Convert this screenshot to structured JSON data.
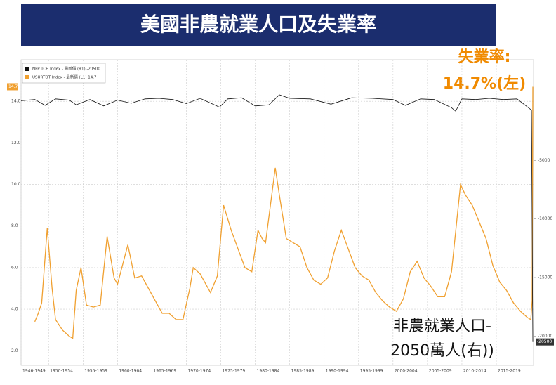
{
  "chart_data": {
    "type": "line",
    "title": "美國非農就業人口及失業率",
    "annotations": [
      "失業率:",
      "14.7%(左)",
      "非農就業人口-",
      "2050萬人(右))"
    ],
    "xlim": [
      1946,
      2020.4
    ],
    "xticks": [
      {
        "value": 1946,
        "label": "1946-1949"
      },
      {
        "value": 1950,
        "label": "1950-1954"
      },
      {
        "value": 1955,
        "label": "1955-1959"
      },
      {
        "value": 1960,
        "label": "1960-1964"
      },
      {
        "value": 1965,
        "label": "1965-1969"
      },
      {
        "value": 1970,
        "label": "1970-1974"
      },
      {
        "value": 1975,
        "label": "1975-1979"
      },
      {
        "value": 1980,
        "label": "1980-1984"
      },
      {
        "value": 1985,
        "label": "1985-1989"
      },
      {
        "value": 1990,
        "label": "1990-1994"
      },
      {
        "value": 1995,
        "label": "1995-1999"
      },
      {
        "value": 2000,
        "label": "2000-2004"
      },
      {
        "value": 2005,
        "label": "2005-2009"
      },
      {
        "value": 2010,
        "label": "2010-2014"
      },
      {
        "value": 2015,
        "label": "2015-2019"
      }
    ],
    "ylim": [
      1.3,
      16
    ],
    "yticks": [
      {
        "value": 2,
        "label": "2.0"
      },
      {
        "value": 4,
        "label": "4.0"
      },
      {
        "value": 6,
        "label": "6.0"
      },
      {
        "value": 8,
        "label": "8.0"
      },
      {
        "value": 10,
        "label": "10.0"
      },
      {
        "value": 12,
        "label": "12.0"
      },
      {
        "value": 14,
        "label": "14.0"
      }
    ],
    "y2lim": [
      -22500,
      3600
    ],
    "y2ticks": [
      -5000,
      -10000,
      -15000,
      -20000
    ],
    "grid": true,
    "series": [
      {
        "name": "USURTOT Index - 最新價 (L1) 14.7",
        "color": "#f0a030",
        "last_label": "14.7",
        "x": [
          1948.0,
          1948.5,
          1949.0,
          1949.8,
          1950.5,
          1951.0,
          1952.0,
          1953.0,
          1953.5,
          1954.0,
          1954.7,
          1955.5,
          1956.5,
          1957.5,
          1958.5,
          1959.5,
          1960.0,
          1961.5,
          1962.5,
          1963.5,
          1964.5,
          1965.5,
          1966.5,
          1967.5,
          1968.5,
          1969.5,
          1970.5,
          1971.0,
          1972.0,
          1973.5,
          1974.5,
          1975.4,
          1976.5,
          1977.5,
          1978.5,
          1979.5,
          1980.4,
          1981.0,
          1981.5,
          1982.9,
          1983.5,
          1984.5,
          1985.5,
          1986.5,
          1987.5,
          1988.5,
          1989.5,
          1990.5,
          1991.5,
          1992.5,
          1993.5,
          1994.5,
          1995.5,
          1996.5,
          1997.5,
          1998.5,
          1999.5,
          2000.5,
          2001.5,
          2002.5,
          2003.5,
          2004.5,
          2005.5,
          2006.5,
          2007.5,
          2008.5,
          2009.8,
          2010.5,
          2011.5,
          2012.5,
          2013.5,
          2014.5,
          2015.5,
          2016.5,
          2017.5,
          2018.5,
          2019.5,
          2020.0,
          2020.2,
          2020.3
        ],
        "values": [
          3.4,
          3.8,
          4.3,
          7.9,
          5.0,
          3.5,
          3.0,
          2.7,
          2.6,
          4.9,
          6.0,
          4.2,
          4.1,
          4.2,
          7.5,
          5.5,
          5.2,
          7.1,
          5.5,
          5.6,
          5.0,
          4.4,
          3.8,
          3.8,
          3.5,
          3.5,
          5.0,
          6.0,
          5.7,
          4.8,
          5.6,
          9.0,
          7.8,
          6.9,
          6.0,
          5.8,
          7.8,
          7.4,
          7.2,
          10.8,
          9.5,
          7.4,
          7.2,
          7.0,
          6.0,
          5.4,
          5.2,
          5.5,
          6.8,
          7.8,
          6.9,
          6.0,
          5.6,
          5.4,
          4.8,
          4.4,
          4.1,
          3.9,
          4.5,
          5.8,
          6.3,
          5.5,
          5.1,
          4.6,
          4.6,
          5.8,
          10.0,
          9.5,
          9.0,
          8.2,
          7.4,
          6.1,
          5.3,
          4.9,
          4.3,
          3.9,
          3.6,
          3.5,
          4.4,
          14.7
        ]
      },
      {
        "name": "NFP TCH Index - 最新價 (R1) -20500",
        "color": "#111111",
        "axis": "y2",
        "last_label": "-20500",
        "x": [
          1946,
          1948,
          1949.5,
          1951,
          1953,
          1954,
          1956,
          1958,
          1960,
          1962,
          1964,
          1966,
          1968,
          1970,
          1972,
          1974.8,
          1976,
          1978,
          1980,
          1982,
          1983.5,
          1985,
          1988,
          1991,
          1994,
          1997,
          2000,
          2001.8,
          2004,
          2006,
          2008.5,
          2009.1,
          2010,
          2012,
          2014,
          2016,
          2018,
          2020.1,
          2020.3
        ],
        "values": [
          100,
          200,
          -300,
          250,
          150,
          -250,
          200,
          -350,
          150,
          -120,
          250,
          300,
          200,
          -150,
          300,
          -450,
          250,
          350,
          -350,
          -250,
          600,
          300,
          250,
          -200,
          350,
          300,
          200,
          -300,
          250,
          200,
          -500,
          -800,
          250,
          200,
          300,
          200,
          250,
          -700,
          -20500
        ]
      }
    ]
  }
}
